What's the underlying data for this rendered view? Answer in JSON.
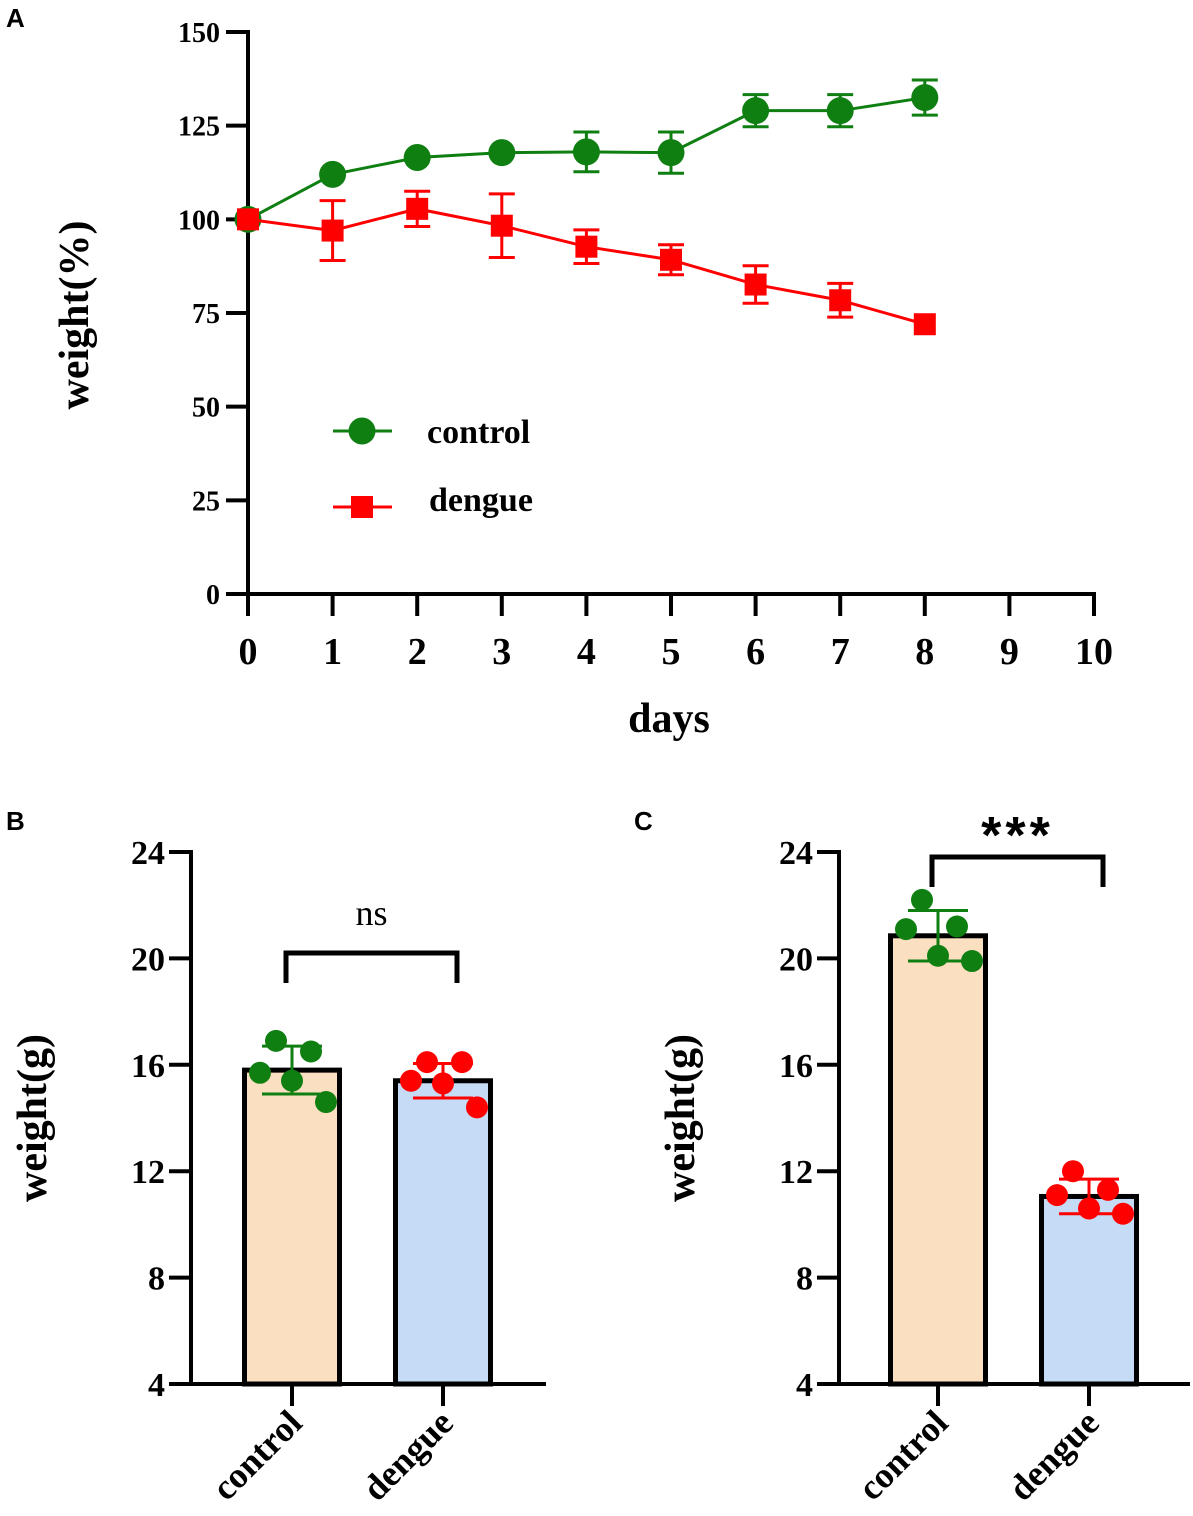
{
  "colors": {
    "control": "#0f7f12",
    "dengue": "#ff0000",
    "bar_control": "#fbdfc1",
    "bar_dengue": "#c6dcf6",
    "axis": "#000000"
  },
  "chart_data": [
    {
      "panel": "A",
      "type": "line",
      "title": "",
      "xlabel": "days",
      "ylabel": "weight(%)",
      "xlim": [
        0,
        10
      ],
      "ylim": [
        0,
        150
      ],
      "xticks": [
        "0",
        "1",
        "2",
        "3",
        "4",
        "5",
        "6",
        "7",
        "8",
        "9",
        "10"
      ],
      "yticks": [
        "0",
        "25",
        "50",
        "75",
        "100",
        "125",
        "150"
      ],
      "legend": {
        "position": "bottom-left"
      },
      "series": [
        {
          "name": "control",
          "marker": "circle",
          "x": [
            0,
            1,
            2,
            3,
            4,
            5,
            6,
            7,
            8
          ],
          "y": [
            100,
            112,
            116.5,
            117.8,
            118,
            117.8,
            129,
            129,
            132.5
          ],
          "err": [
            0,
            0,
            0,
            0,
            5.3,
            5.5,
            4.3,
            4.3,
            4.7
          ]
        },
        {
          "name": "dengue",
          "marker": "square",
          "x": [
            0,
            1,
            2,
            3,
            4,
            5,
            6,
            7,
            8
          ],
          "y": [
            100,
            97,
            102.8,
            98.3,
            92.7,
            89.2,
            82.6,
            78.4,
            72
          ],
          "err": [
            0,
            8,
            4.7,
            8.5,
            4.5,
            4,
            5,
            4.5,
            0
          ]
        }
      ]
    },
    {
      "panel": "B",
      "type": "bar",
      "title": "",
      "xlabel": "",
      "ylabel": "weight(g)",
      "ylim": [
        4,
        24
      ],
      "yticks": [
        "4",
        "8",
        "12",
        "16",
        "20",
        "24"
      ],
      "categories": [
        "control",
        "dengue"
      ],
      "values": [
        15.8,
        15.4
      ],
      "err": [
        0.9,
        0.65
      ],
      "points": [
        [
          16.9,
          16.5,
          15.7,
          15.4,
          14.6
        ],
        [
          16.1,
          16.1,
          15.4,
          15.3,
          14.4
        ]
      ],
      "significance": "ns"
    },
    {
      "panel": "C",
      "type": "bar",
      "title": "",
      "xlabel": "",
      "ylabel": "weight(g)",
      "ylim": [
        4,
        24
      ],
      "yticks": [
        "4",
        "8",
        "12",
        "16",
        "20",
        "24"
      ],
      "categories": [
        "control",
        "dengue"
      ],
      "values": [
        20.85,
        11.05
      ],
      "err": [
        0.95,
        0.65
      ],
      "points": [
        [
          22.2,
          21.2,
          21.1,
          20.1,
          19.9
        ],
        [
          12.0,
          11.3,
          11.1,
          10.6,
          10.4
        ]
      ],
      "significance": "***"
    }
  ]
}
